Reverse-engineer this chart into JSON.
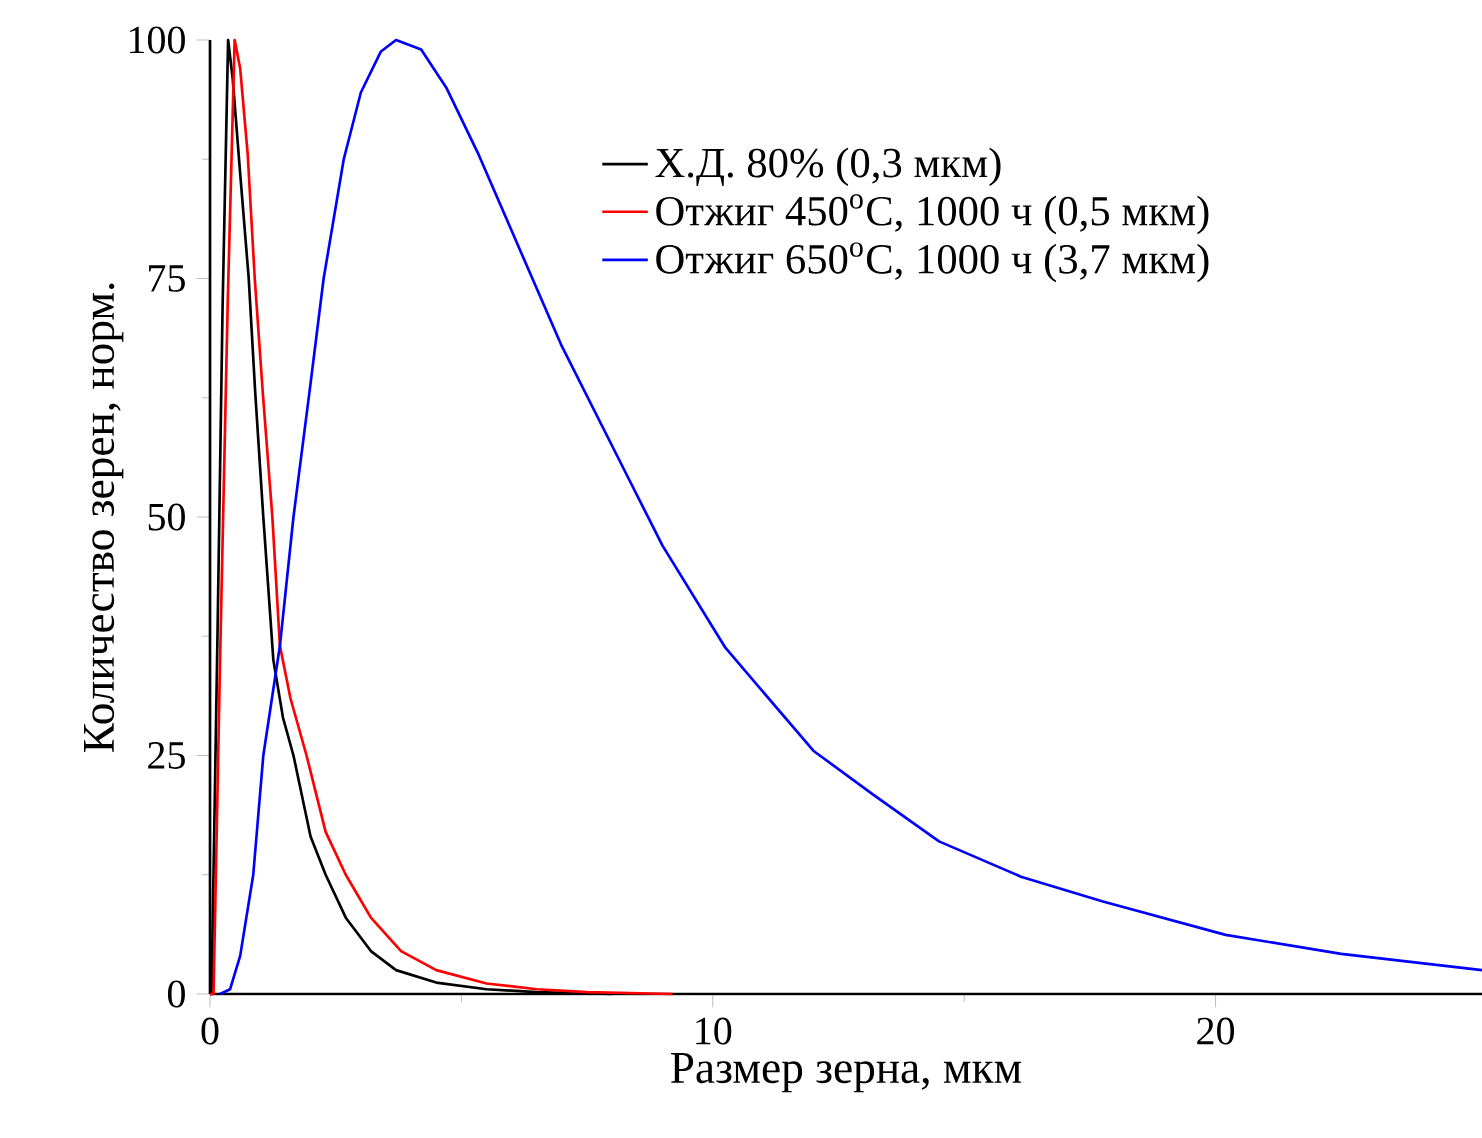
{
  "chart_data": {
    "type": "line",
    "xlabel": "Размер зерна, мкм",
    "ylabel": "Количество зерен, норм.",
    "xlim": [
      0,
      25.3
    ],
    "ylim": [
      0,
      100
    ],
    "xticks": [
      0,
      10,
      20
    ],
    "yticks": [
      0,
      25,
      50,
      75,
      100
    ],
    "legend": "top right",
    "marker": "none",
    "series": [
      {
        "name": "Х.Д. 80% (0,3 мкм)",
        "color": "#000000",
        "x": [
          0,
          0.03,
          0.15,
          0.25,
          0.36,
          0.45,
          0.6,
          0.77,
          0.9,
          1.06,
          1.26,
          1.45,
          1.66,
          2.0,
          2.3,
          2.7,
          3.2,
          3.7,
          4.5,
          5.5,
          6.5,
          8
        ],
        "values": [
          0,
          0,
          38,
          72,
          100,
          96,
          86,
          75,
          63,
          50,
          35,
          29,
          25,
          16.5,
          12.5,
          8,
          4.5,
          2.5,
          1.2,
          0.5,
          0.2,
          0
        ]
      },
      {
        "name": "Отжиг 450$^{o}$C, 1000 ч (0,5 мкм)",
        "color": "#ff0000",
        "x": [
          0,
          0.07,
          0.2,
          0.35,
          0.49,
          0.6,
          0.75,
          0.89,
          1.05,
          1.24,
          1.39,
          1.6,
          1.92,
          2.3,
          2.7,
          3.2,
          3.8,
          4.5,
          5.5,
          6.5,
          7.5,
          9.2
        ],
        "values": [
          0,
          0,
          35,
          72,
          100,
          97,
          88,
          75,
          63,
          50,
          36.5,
          31,
          25,
          17,
          12.5,
          8,
          4.5,
          2.5,
          1.1,
          0.5,
          0.2,
          0
        ]
      },
      {
        "name": "Отжиг 650$^{o}$C, 1000 ч (3,7 мкм)",
        "color": "#0000ff",
        "x": [
          0.2,
          0.4,
          0.6,
          0.86,
          1.06,
          1.39,
          1.66,
          2.0,
          2.26,
          2.66,
          3.0,
          3.4,
          3.7,
          4.2,
          4.7,
          5.35,
          6.0,
          6.98,
          8.29,
          9.0,
          10.25,
          12.0,
          13.19,
          14.5,
          16.13,
          17.76,
          20.2,
          22.5,
          25.3
        ],
        "values": [
          0,
          0.5,
          4,
          12.5,
          25,
          36.5,
          50,
          64,
          75,
          87.5,
          94.5,
          98.8,
          100,
          99,
          95,
          87.9,
          80,
          68.1,
          54.4,
          47,
          36.3,
          25.5,
          20.9,
          16,
          12.3,
          9.7,
          6.2,
          4.2,
          2.5
        ]
      }
    ]
  }
}
